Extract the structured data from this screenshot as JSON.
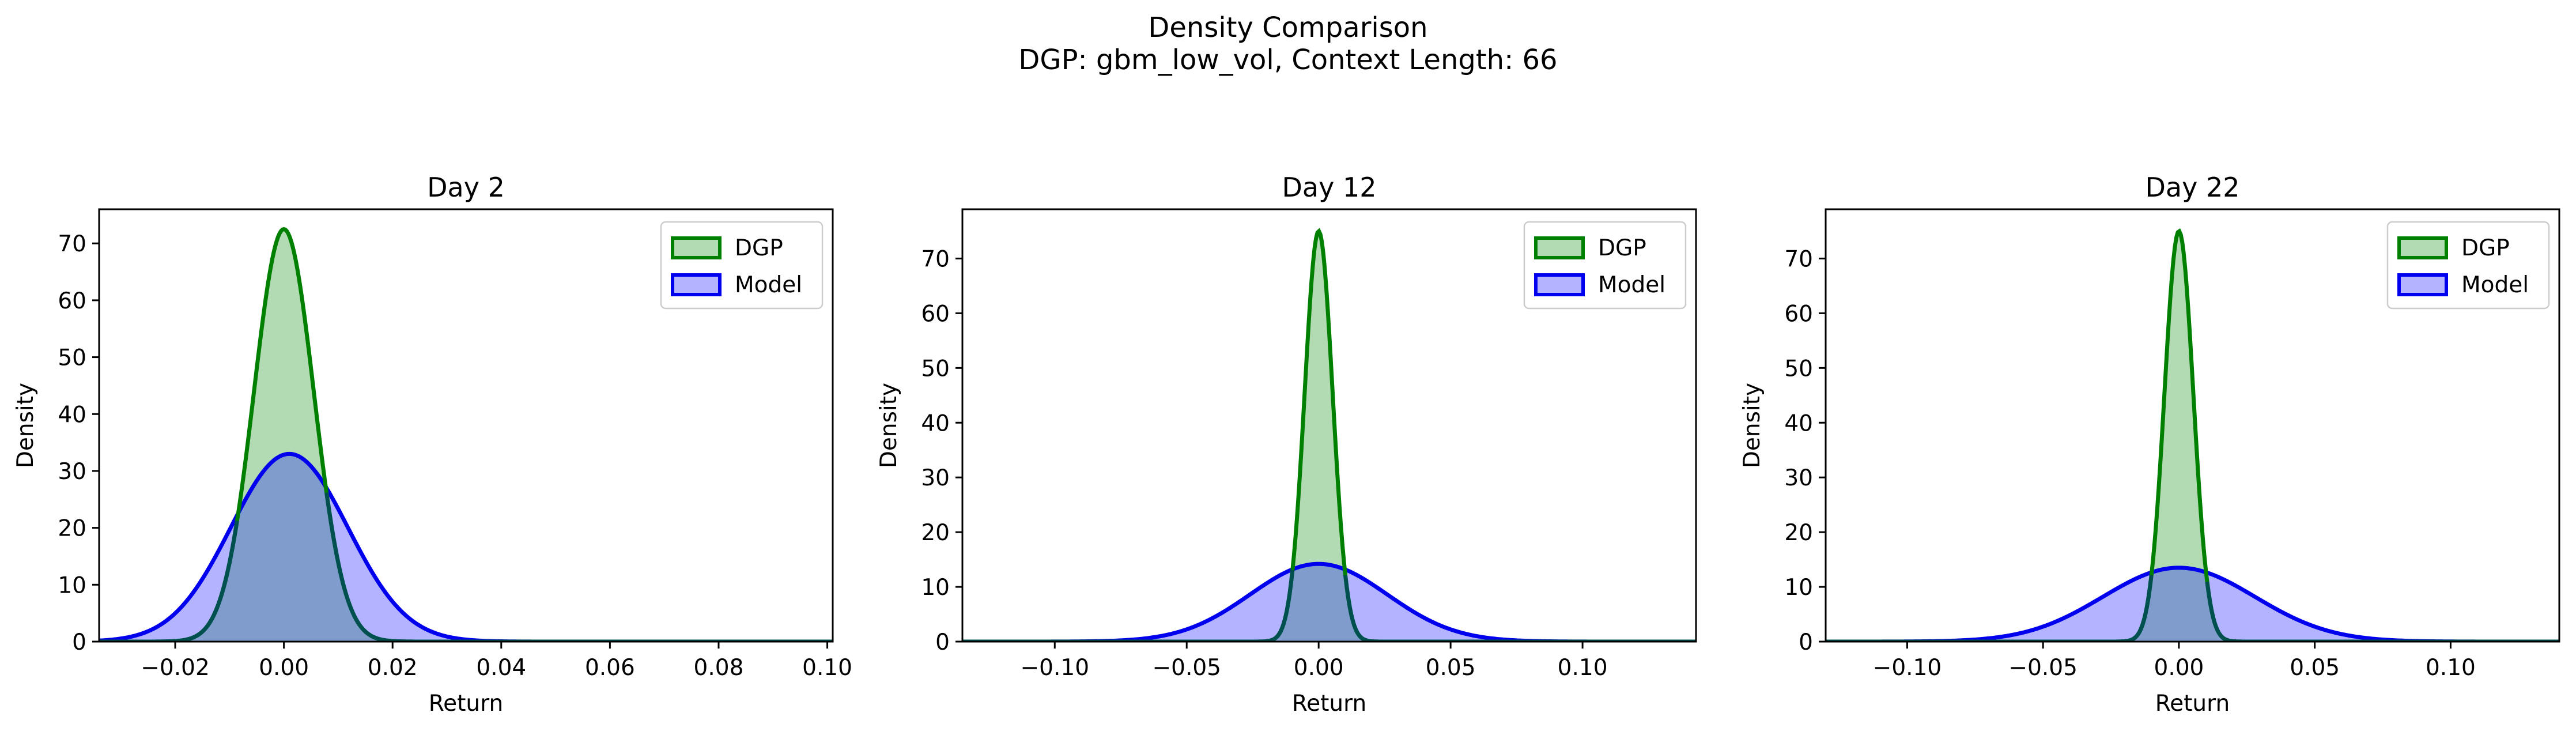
{
  "figure": {
    "title": "Density Comparison",
    "subtitle": "DGP: gbm_low_vol, Context Length: 66"
  },
  "colors": {
    "dgp_line": "#008000",
    "dgp_fill": "#b3dbb3",
    "model_line": "#0000ee",
    "model_fill": "#b3b3ff",
    "overlap_fill": "#7f9ccd",
    "overlap_line": "#005050"
  },
  "chart_data": [
    {
      "type": "area",
      "title": "Day 2",
      "xlabel": "Return",
      "ylabel": "Density",
      "xlim": [
        -0.034,
        0.101
      ],
      "ylim": [
        0,
        76
      ],
      "xticks": [
        -0.02,
        0.0,
        0.02,
        0.04,
        0.06,
        0.08,
        0.1
      ],
      "xtick_labels": [
        "−0.02",
        "0.00",
        "0.02",
        "0.04",
        "0.06",
        "0.08",
        "0.10"
      ],
      "yticks": [
        0,
        10,
        20,
        30,
        40,
        50,
        60,
        70
      ],
      "ytick_labels": [
        "0",
        "10",
        "20",
        "30",
        "40",
        "50",
        "60",
        "70"
      ],
      "legend": "upper-right",
      "series": [
        {
          "name": "DGP",
          "kind": "kde",
          "peak_x": 0.0,
          "peak_y": 72.5,
          "std": 0.0055
        },
        {
          "name": "Model",
          "kind": "kde",
          "peak_x": 0.001,
          "peak_y": 33.0,
          "std": 0.0108
        }
      ]
    },
    {
      "type": "area",
      "title": "Day 12",
      "xlabel": "Return",
      "ylabel": "Density",
      "xlim": [
        -0.135,
        0.143
      ],
      "ylim": [
        0,
        79
      ],
      "xticks": [
        -0.1,
        -0.05,
        0.0,
        0.05,
        0.1
      ],
      "xtick_labels": [
        "−0.10",
        "−0.05",
        "0.00",
        "0.05",
        "0.10"
      ],
      "yticks": [
        0,
        10,
        20,
        30,
        40,
        50,
        60,
        70
      ],
      "ytick_labels": [
        "0",
        "10",
        "20",
        "30",
        "40",
        "50",
        "60",
        "70"
      ],
      "legend": "upper-right",
      "series": [
        {
          "name": "DGP",
          "kind": "kde",
          "peak_x": 0.0,
          "peak_y": 75.0,
          "std": 0.0053
        },
        {
          "name": "Model",
          "kind": "kde",
          "peak_x": 0.0,
          "peak_y": 14.2,
          "std": 0.026
        }
      ]
    },
    {
      "type": "area",
      "title": "Day 22",
      "xlabel": "Return",
      "ylabel": "Density",
      "xlim": [
        -0.13,
        0.14
      ],
      "ylim": [
        0,
        79
      ],
      "xticks": [
        -0.1,
        -0.05,
        0.0,
        0.05,
        0.1
      ],
      "xtick_labels": [
        "−0.10",
        "−0.05",
        "0.00",
        "0.05",
        "0.10"
      ],
      "yticks": [
        0,
        10,
        20,
        30,
        40,
        50,
        60,
        70
      ],
      "ytick_labels": [
        "0",
        "10",
        "20",
        "30",
        "40",
        "50",
        "60",
        "70"
      ],
      "legend": "upper-right",
      "series": [
        {
          "name": "DGP",
          "kind": "kde",
          "peak_x": 0.0,
          "peak_y": 75.0,
          "std": 0.0053
        },
        {
          "name": "Model",
          "kind": "kde",
          "peak_x": 0.0,
          "peak_y": 13.5,
          "std": 0.028
        }
      ]
    }
  ]
}
